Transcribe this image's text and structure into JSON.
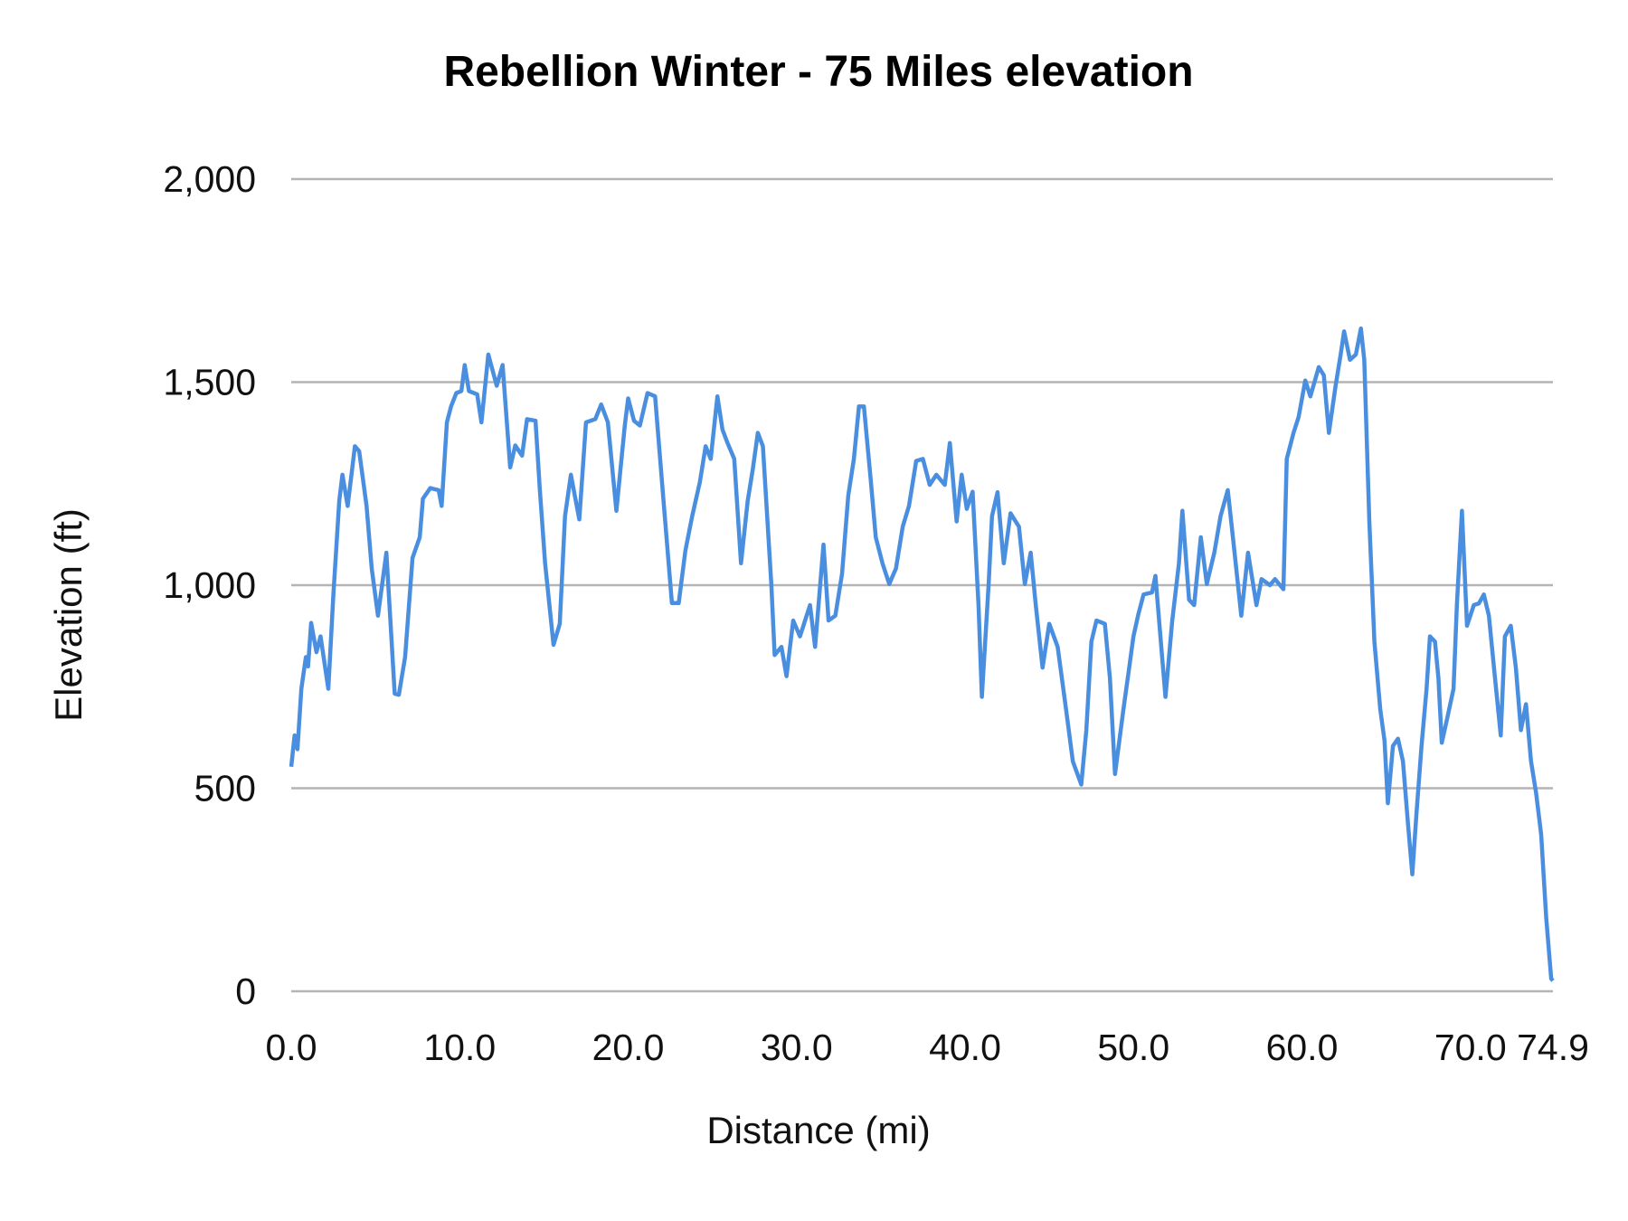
{
  "chart_data": {
    "type": "line",
    "title": "Rebellion Winter - 75 Miles elevation",
    "xlabel": "Distance (mi)",
    "ylabel": "Elevation (ft)",
    "xlim": [
      0,
      74.9
    ],
    "ylim": [
      0,
      2000
    ],
    "x_ticks": [
      "0.0",
      "10.0",
      "20.0",
      "30.0",
      "40.0",
      "50.0",
      "60.0",
      "70.0",
      "74.9"
    ],
    "x_tick_values": [
      0,
      10,
      20,
      30,
      40,
      50,
      60,
      70,
      74.9
    ],
    "y_ticks": [
      "0",
      "500",
      "1,000",
      "1,500",
      "2,000"
    ],
    "y_tick_values": [
      0,
      500,
      1000,
      1500,
      2000
    ],
    "grid": "horizontal",
    "legend": "none",
    "line_color": "#4a8ee0",
    "series": [
      {
        "x": [
          0,
          0.2,
          0.37,
          0.6,
          0.87,
          1.0,
          1.18,
          1.5,
          1.74,
          2.2,
          2.5,
          2.85,
          3.04,
          3.35,
          3.78,
          4.03,
          4.47,
          4.78,
          5.15,
          5.65,
          6.14,
          6.39,
          6.76,
          7.2,
          7.63,
          7.82,
          8.25,
          8.75,
          8.93,
          9.24,
          9.49,
          9.8,
          10.1,
          10.3,
          10.55,
          11.04,
          11.29,
          11.7,
          12.2,
          12.55,
          13.0,
          13.3,
          13.7,
          14.0,
          14.5,
          14.76,
          15.07,
          15.57,
          15.94,
          16.25,
          16.6,
          17.1,
          17.5,
          18.05,
          18.4,
          18.8,
          19.3,
          19.8,
          20.0,
          20.35,
          20.7,
          21.15,
          21.6,
          22.1,
          22.6,
          23.0,
          23.4,
          23.8,
          24.26,
          24.6,
          24.9,
          25.3,
          25.6,
          25.9,
          26.3,
          26.7,
          27.1,
          27.4,
          27.7,
          28.0,
          28.5,
          28.7,
          29.1,
          29.4,
          29.8,
          30.2,
          30.8,
          31.1,
          31.6,
          31.9,
          32.3,
          32.7,
          33.07,
          33.4,
          33.7,
          34.0,
          34.4,
          34.7,
          35.1,
          35.5,
          35.9,
          36.3,
          36.67,
          37.1,
          37.5,
          37.9,
          38.3,
          38.8,
          39.1,
          39.5,
          39.8,
          40.1,
          40.45,
          40.8,
          41.0,
          41.4,
          41.6,
          41.93,
          42.3,
          42.7,
          43.2,
          43.55,
          43.9,
          44.2,
          44.6,
          45.0,
          45.5,
          46.0,
          46.4,
          46.9,
          47.2,
          47.5,
          47.8,
          48.3,
          48.6,
          48.9,
          49.4,
          49.7,
          50.0,
          50.3,
          50.6,
          51.1,
          51.3,
          51.7,
          51.9,
          52.3,
          52.7,
          52.9,
          53.3,
          53.6,
          54.0,
          54.35,
          54.8,
          55.17,
          55.6,
          56.0,
          56.4,
          56.8,
          57.3,
          57.6,
          58.1,
          58.4,
          58.9,
          59.1,
          59.5,
          59.8,
          60.2,
          60.5,
          61.0,
          61.3,
          61.6,
          62.0,
          62.3,
          62.5,
          62.85,
          63.2,
          63.5,
          63.7,
          64.0,
          64.3,
          64.65,
          64.9,
          65.1,
          65.4,
          65.7,
          66.0,
          66.3,
          66.55,
          66.8,
          67.1,
          67.4,
          67.6,
          67.9,
          68.1,
          68.3,
          68.6,
          69.0,
          69.2,
          69.5,
          69.8,
          70.2,
          70.5,
          70.8,
          71.1,
          71.4,
          71.8,
          72.05,
          72.4,
          72.7,
          73.0,
          73.3,
          73.6,
          73.9,
          74.2,
          74.5,
          74.8,
          74.9
        ],
        "y": [
          553,
          630,
          596,
          745,
          823,
          800,
          907,
          835,
          874,
          745,
          977,
          1208,
          1272,
          1195,
          1342,
          1330,
          1195,
          1041,
          925,
          1080,
          733,
          730,
          823,
          1067,
          1118,
          1213,
          1239,
          1234,
          1195,
          1401,
          1440,
          1473,
          1478,
          1542,
          1478,
          1470,
          1401,
          1568,
          1491,
          1542,
          1290,
          1344,
          1319,
          1409,
          1405,
          1234,
          1054,
          853,
          905,
          1170,
          1272,
          1162,
          1401,
          1409,
          1445,
          1401,
          1183,
          1393,
          1460,
          1405,
          1393,
          1473,
          1465,
          1208,
          956,
          956,
          1085,
          1170,
          1254,
          1342,
          1311,
          1465,
          1383,
          1350,
          1311,
          1054,
          1208,
          1285,
          1375,
          1342,
          1003,
          828,
          848,
          776,
          913,
          874,
          951,
          848,
          1100,
          913,
          925,
          1028,
          1221,
          1311,
          1440,
          1440,
          1260,
          1118,
          1054,
          1003,
          1041,
          1144,
          1195,
          1306,
          1311,
          1247,
          1272,
          1247,
          1350,
          1157,
          1272,
          1188,
          1230,
          951,
          725,
          1003,
          1170,
          1229,
          1054,
          1177,
          1144,
          1003,
          1080,
          951,
          797,
          905,
          848,
          694,
          566,
          509,
          643,
          861,
          913,
          905,
          771,
          535,
          694,
          784,
          874,
          930,
          977,
          982,
          1023,
          823,
          725,
          913,
          1054,
          1183,
          964,
          951,
          1118,
          1003,
          1080,
          1170,
          1234,
          1080,
          925,
          1080,
          951,
          1015,
          1000,
          1015,
          990,
          1311,
          1375,
          1414,
          1504,
          1465,
          1537,
          1517,
          1375,
          1491,
          1568,
          1625,
          1555,
          1568,
          1632,
          1555,
          1157,
          861,
          694,
          617,
          463,
          604,
          622,
          566,
          411,
          288,
          437,
          604,
          745,
          874,
          861,
          771,
          612,
          668,
          745,
          951,
          1183,
          900,
          951,
          955,
          977,
          925,
          797,
          630,
          874,
          900,
          797,
          643,
          707,
          566,
          488,
          386,
          180,
          31,
          26
        ]
      }
    ]
  }
}
